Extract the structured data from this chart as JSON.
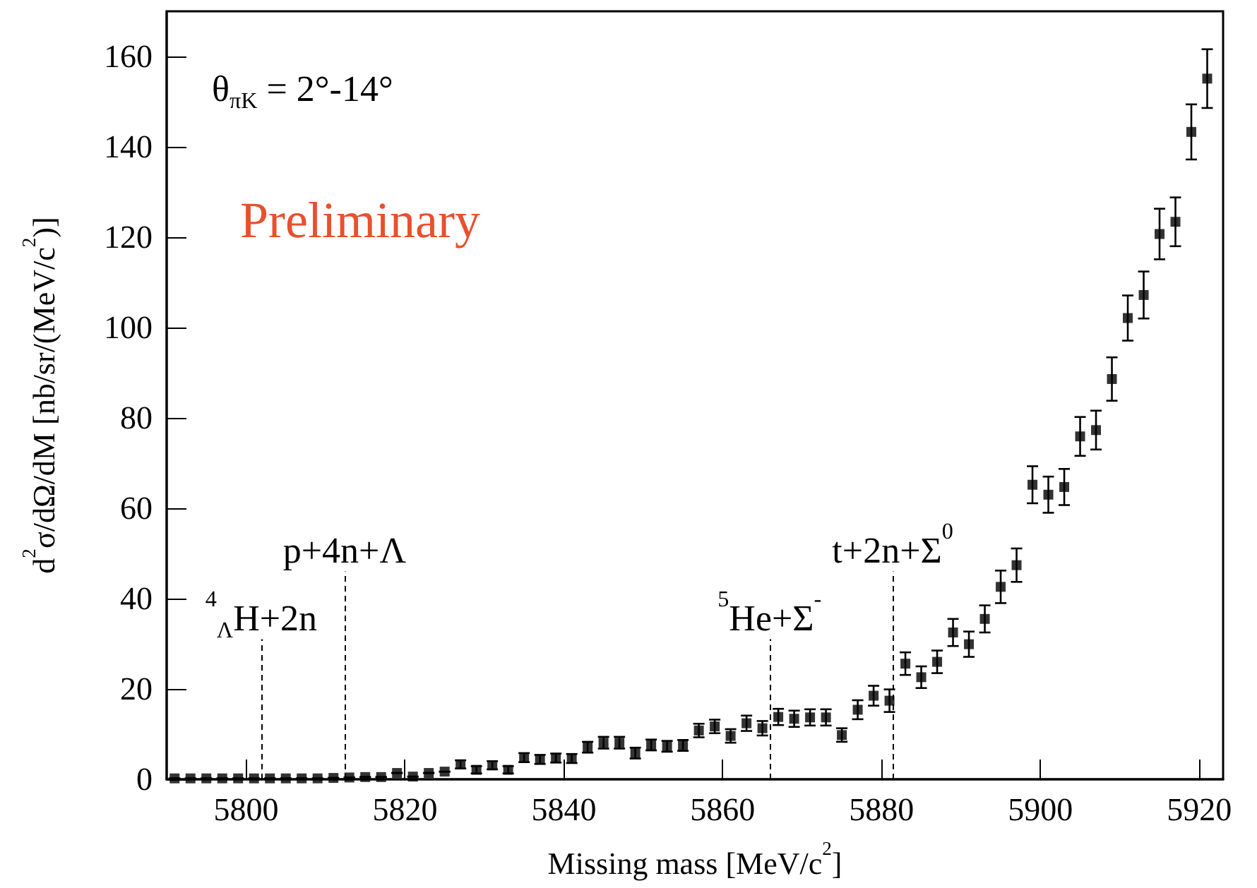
{
  "chart_data": {
    "type": "scatter",
    "xlabel": "Missing mass [MeV/c$^{2}$]",
    "ylabel": "d$^{2}$σ/dΩ/dM [nb/sr/(MeV/c$^{2}$)]",
    "x": [
      5791,
      5793,
      5795,
      5797,
      5799,
      5801,
      5803,
      5805,
      5807,
      5809,
      5811,
      5813,
      5815,
      5817,
      5819,
      5821,
      5823,
      5825,
      5827,
      5829,
      5831,
      5833,
      5835,
      5837,
      5839,
      5841,
      5843,
      5845,
      5847,
      5849,
      5851,
      5853,
      5855,
      5857,
      5859,
      5861,
      5863,
      5865,
      5867,
      5869,
      5871,
      5873,
      5875,
      5877,
      5879,
      5881,
      5883,
      5885,
      5887,
      5889,
      5891,
      5893,
      5895,
      5897,
      5899,
      5901,
      5903,
      5905,
      5907,
      5909,
      5911,
      5913,
      5915,
      5917,
      5919,
      5921
    ],
    "series": [
      {
        "color": "#000000",
        "marker": "square",
        "values": [
          0.2,
          0.2,
          0.2,
          0.2,
          0.2,
          0.2,
          0.2,
          0.2,
          0.2,
          0.2,
          0.3,
          0.4,
          0.5,
          0.5,
          1.4,
          0.6,
          1.4,
          1.7,
          3.3,
          2.1,
          3.1,
          2.1,
          4.8,
          4.4,
          4.7,
          4.6,
          7.1,
          8.1,
          8.1,
          5.8,
          7.6,
          7.3,
          7.5,
          10.8,
          11.7,
          9.6,
          12.4,
          11.3,
          13.8,
          13.4,
          13.7,
          13.7,
          9.8,
          15.4,
          18.5,
          17.4,
          25.6,
          22.6,
          26.0,
          32.5,
          29.9,
          35.5,
          42.6,
          47.4,
          65.2,
          63.0,
          64.7,
          75.9,
          77.3,
          88.6,
          102.1,
          107.2,
          120.7,
          123.4,
          143.3,
          155.1
        ],
        "errors": [
          null,
          null,
          null,
          null,
          null,
          null,
          null,
          null,
          null,
          null,
          null,
          null,
          null,
          null,
          null,
          null,
          null,
          null,
          0.9,
          0.8,
          0.9,
          0.8,
          1.0,
          1.0,
          1.0,
          1.0,
          1.2,
          1.3,
          1.3,
          1.2,
          1.2,
          1.2,
          1.2,
          1.5,
          1.5,
          1.5,
          1.7,
          1.6,
          1.8,
          1.8,
          1.8,
          1.8,
          1.5,
          2.1,
          2.2,
          2.5,
          2.5,
          2.4,
          2.5,
          3.0,
          2.8,
          3.0,
          3.6,
          3.7,
          4.1,
          4.0,
          4.0,
          4.3,
          4.3,
          4.8,
          5.0,
          5.2,
          5.6,
          5.4,
          6.1,
          6.5
        ]
      }
    ],
    "xlim": [
      5790,
      5923
    ],
    "xticks": [
      5800,
      5820,
      5840,
      5860,
      5880,
      5900,
      5920
    ],
    "ylim": [
      0,
      170
    ],
    "yticks": [
      0,
      20,
      40,
      60,
      80,
      100,
      120,
      140,
      160
    ],
    "grid": false,
    "ref_lines": [
      {
        "axis": "x",
        "value": 5801.9,
        "line_style": "dashed",
        "color": "#000000"
      },
      {
        "axis": "x",
        "value": 5812.4,
        "line_style": "dashed",
        "color": "#000000"
      },
      {
        "axis": "x",
        "value": 5865.9,
        "line_style": "dashed",
        "color": "#000000"
      },
      {
        "axis": "x",
        "value": 5881.4,
        "line_style": "dashed",
        "color": "#000000"
      }
    ],
    "annotations": [
      "θ$_{πK}$ = 2°-14°",
      "Preliminary",
      {
        "text": "$^{4}$$_{Λ}$H+2n",
        "x": 5801.9,
        "y": 31
      },
      {
        "text": "p+4n+Λ",
        "x": 5812.4,
        "y": 46
      },
      {
        "text": "$^{5}$He+Σ$^{-}$",
        "x": 5865.9,
        "y": 31
      },
      {
        "text": "t+2n+Σ$^{0}$",
        "x": 5881.4,
        "y": 46
      }
    ]
  }
}
